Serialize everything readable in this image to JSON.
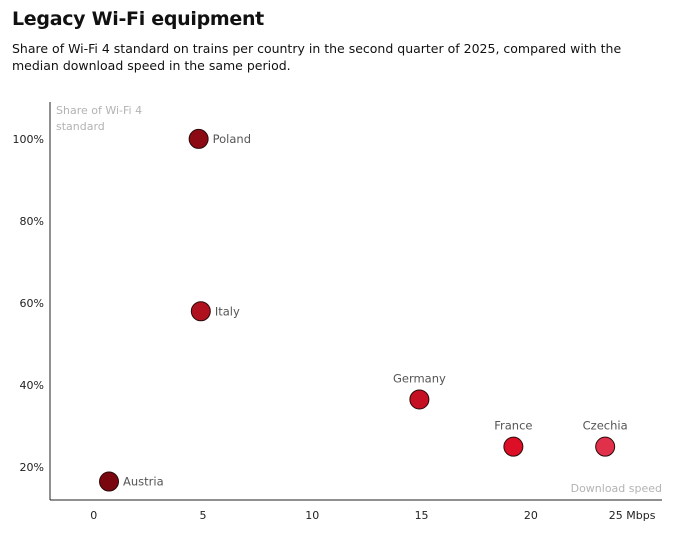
{
  "title": "Legacy Wi-Fi equipment",
  "subtitle": "Share of Wi-Fi 4 standard on trains per country in the second quarter of 2025, compared with the median download speed in the same period.",
  "chart_data": {
    "type": "scatter",
    "title": "Legacy Wi-Fi equipment",
    "subtitle": "Share of Wi-Fi 4 standard on trains per country in the second quarter of 2025, compared with the median download speed in the same period.",
    "xlabel": "Download speed",
    "ylabel": "Share of Wi-Fi 4 standard",
    "xlim": [
      -2,
      26
    ],
    "ylim": [
      12,
      109
    ],
    "x_ticks": [
      0,
      5,
      10,
      15,
      20,
      25
    ],
    "x_tick_labels": [
      "0",
      "5",
      "10",
      "15",
      "20",
      "25 Mbps"
    ],
    "y_ticks": [
      20,
      40,
      60,
      80,
      100
    ],
    "y_tick_labels": [
      "20%",
      "40%",
      "60%",
      "80%",
      "100%"
    ],
    "grid": false,
    "points": [
      {
        "name": "Poland",
        "x": 4.8,
        "y": 100,
        "color": "#8b0a14",
        "label_pos": "right"
      },
      {
        "name": "Italy",
        "x": 4.9,
        "y": 58,
        "color": "#b0111f",
        "label_pos": "right"
      },
      {
        "name": "Germany",
        "x": 14.9,
        "y": 36.5,
        "color": "#c41022",
        "label_pos": "above"
      },
      {
        "name": "France",
        "x": 19.2,
        "y": 25,
        "color": "#dc0f26",
        "label_pos": "above"
      },
      {
        "name": "Czechia",
        "x": 23.4,
        "y": 25,
        "color": "#e1304a",
        "label_pos": "above"
      },
      {
        "name": "Austria",
        "x": 0.7,
        "y": 16.5,
        "color": "#7a0610",
        "label_pos": "right"
      }
    ]
  }
}
